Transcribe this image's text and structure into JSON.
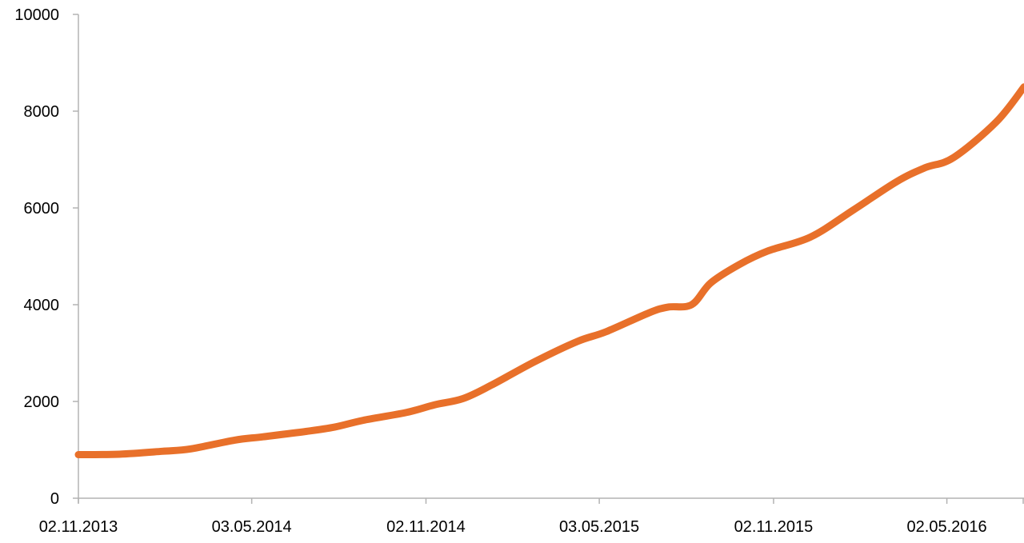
{
  "chart_data": {
    "type": "line",
    "title": "",
    "xlabel": "",
    "ylabel": "",
    "x_tick_labels": [
      "02.11.2013",
      "03.05.2014",
      "02.11.2014",
      "03.05.2015",
      "02.11.2015",
      "02.05.2016"
    ],
    "y_tick_labels": [
      "0",
      "2000",
      "4000",
      "6000",
      "8000",
      "10000"
    ],
    "ylim": [
      0,
      10000
    ],
    "xlim": [
      "2013-11-02",
      "2016-07-22"
    ],
    "grid": false,
    "legend": "none",
    "series": [
      {
        "color": "#e8702a",
        "points": [
          {
            "x": "2013-11-02",
            "y": 900
          },
          {
            "x": "2013-12-15",
            "y": 910
          },
          {
            "x": "2014-01-29",
            "y": 970
          },
          {
            "x": "2014-02-28",
            "y": 1020
          },
          {
            "x": "2014-04-15",
            "y": 1200
          },
          {
            "x": "2014-05-15",
            "y": 1270
          },
          {
            "x": "2014-06-29",
            "y": 1380
          },
          {
            "x": "2014-07-29",
            "y": 1470
          },
          {
            "x": "2014-08-28",
            "y": 1610
          },
          {
            "x": "2014-10-12",
            "y": 1770
          },
          {
            "x": "2014-11-11",
            "y": 1930
          },
          {
            "x": "2014-12-11",
            "y": 2060
          },
          {
            "x": "2015-01-10",
            "y": 2340
          },
          {
            "x": "2015-02-24",
            "y": 2820
          },
          {
            "x": "2015-04-10",
            "y": 3240
          },
          {
            "x": "2015-05-10",
            "y": 3440
          },
          {
            "x": "2015-06-24",
            "y": 3830
          },
          {
            "x": "2015-07-14",
            "y": 3950
          },
          {
            "x": "2015-08-08",
            "y": 4000
          },
          {
            "x": "2015-08-28",
            "y": 4450
          },
          {
            "x": "2015-09-27",
            "y": 4830
          },
          {
            "x": "2015-10-27",
            "y": 5110
          },
          {
            "x": "2015-12-11",
            "y": 5400
          },
          {
            "x": "2016-01-25",
            "y": 5960
          },
          {
            "x": "2016-03-10",
            "y": 6540
          },
          {
            "x": "2016-04-09",
            "y": 6830
          },
          {
            "x": "2016-05-09",
            "y": 7040
          },
          {
            "x": "2016-06-23",
            "y": 7780
          },
          {
            "x": "2016-07-22",
            "y": 8500
          }
        ]
      }
    ]
  }
}
